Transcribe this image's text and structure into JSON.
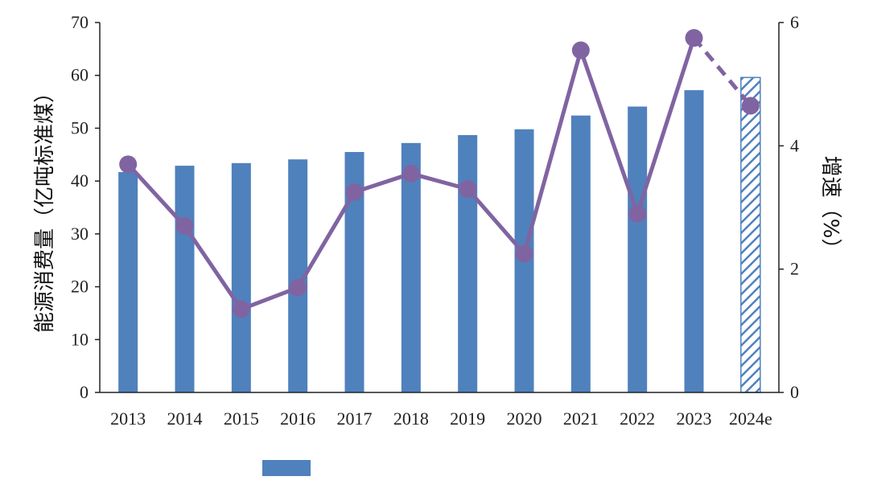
{
  "chart_data": {
    "type": "bar+line",
    "categories": [
      "2013",
      "2014",
      "2015",
      "2016",
      "2017",
      "2018",
      "2019",
      "2020",
      "2021",
      "2022",
      "2023",
      "2024e"
    ],
    "series": [
      {
        "kind": "bar",
        "axis": "left",
        "color": "#4F81BD",
        "values": [
          41.7,
          42.9,
          43.4,
          44.1,
          45.5,
          47.2,
          48.7,
          49.8,
          52.4,
          54.1,
          57.2,
          59.6
        ],
        "forecast_from_index": 11
      },
      {
        "kind": "line",
        "axis": "right",
        "color": "#8064A2",
        "values": [
          3.7,
          2.7,
          1.35,
          1.7,
          3.25,
          3.55,
          3.3,
          2.25,
          5.55,
          2.9,
          5.75,
          4.65
        ],
        "forecast_from_index": 10
      }
    ],
    "ylabel_left": "能源消费量（亿吨标准煤）",
    "ylabel_right": "增速（%）",
    "ylim_left": [
      0,
      70
    ],
    "yticks_left": [
      "0",
      "10",
      "20",
      "30",
      "40",
      "50",
      "60",
      "70"
    ],
    "ylim_right": [
      0,
      6
    ],
    "yticks_right": [
      "0",
      "2",
      "4",
      "6"
    ],
    "legend_placement": "bottom",
    "grid": false
  }
}
